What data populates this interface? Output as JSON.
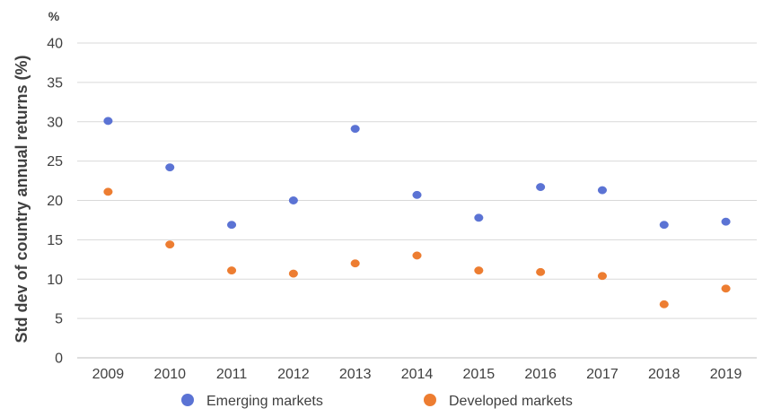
{
  "chart_data": {
    "type": "scatter",
    "unit_label": "%",
    "ylabel": "Std dev of country annual returns (%)",
    "xlabel": "",
    "ylim": [
      0,
      40
    ],
    "y_ticks": [
      "0",
      "5",
      "10",
      "15",
      "20",
      "25",
      "30",
      "35",
      "40"
    ],
    "categories": [
      "2009",
      "2010",
      "2011",
      "2012",
      "2013",
      "2014",
      "2015",
      "2016",
      "2017",
      "2018",
      "2019"
    ],
    "grid": true,
    "legend_position": "bottom",
    "series": [
      {
        "name": "Emerging markets",
        "color": "#5b73d4",
        "values": [
          30.1,
          24.2,
          16.9,
          20.0,
          29.1,
          20.7,
          17.8,
          21.7,
          21.3,
          16.9,
          17.3
        ]
      },
      {
        "name": "Developed markets",
        "color": "#ed7d31",
        "values": [
          21.1,
          14.4,
          11.1,
          10.7,
          12.0,
          13.0,
          11.1,
          10.9,
          10.4,
          6.8,
          8.8
        ]
      }
    ]
  }
}
